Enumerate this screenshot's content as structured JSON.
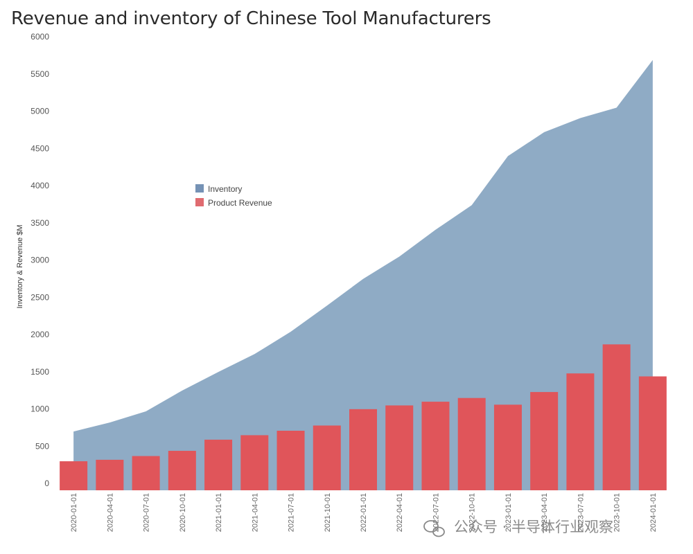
{
  "chart_data": {
    "type": "bar",
    "title": "Revenue and inventory of Chinese Tool Manufacturers",
    "ylabel": "Inventory & Revenue $M",
    "xlabel": "",
    "ylim": [
      0,
      6000
    ],
    "yticks": [
      0,
      500,
      1000,
      1500,
      2000,
      2500,
      3000,
      3500,
      4000,
      4500,
      5000,
      5500,
      6000
    ],
    "grid": false,
    "legend_placement": "upper-left-center",
    "categories": [
      "2020-01-01",
      "2020-04-01",
      "2020-07-01",
      "2020-10-01",
      "2021-01-01",
      "2021-04-01",
      "2021-07-01",
      "2021-10-01",
      "2022-01-01",
      "2022-04-01",
      "2022-07-01",
      "2022-10-01",
      "2023-01-01",
      "2023-04-01",
      "2023-07-01",
      "2023-10-01",
      "2024-01-01"
    ],
    "series": [
      {
        "name": "Inventory",
        "type": "area",
        "color": "#8fabc5",
        "legend_color": "#7592b5",
        "values": [
          790,
          910,
          1060,
          1340,
          1590,
          1830,
          2130,
          2480,
          2840,
          3140,
          3500,
          3830,
          4490,
          4810,
          5000,
          5140,
          5780
        ]
      },
      {
        "name": "Product Revenue",
        "type": "bar",
        "color": "#e0555a",
        "legend_color": "#e06b70",
        "values": [
          390,
          410,
          460,
          530,
          680,
          740,
          800,
          870,
          1090,
          1140,
          1190,
          1240,
          1150,
          1320,
          1570,
          1960,
          1530
        ]
      }
    ]
  },
  "watermark": {
    "text": "公众号 · 半导体行业观察",
    "icon": "wechat-icon"
  }
}
